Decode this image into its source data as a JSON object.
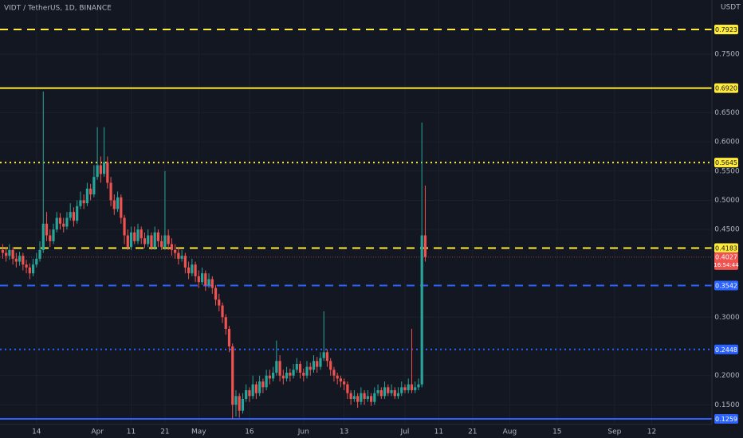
{
  "chart_data": {
    "type": "candlestick",
    "title": "VIDT / TetherUS, 1D, BINANCE",
    "y_axis_unit": "USDT",
    "up_color": "#26a69a",
    "down_color": "#ef5350",
    "grid": true,
    "xlim": [
      2.2,
      212.8
    ],
    "ylim": [
      0.1164,
      0.8427
    ],
    "xticks": [
      {
        "value": 13,
        "label": "14"
      },
      {
        "value": 31,
        "label": "Apr"
      },
      {
        "value": 41,
        "label": "11"
      },
      {
        "value": 51,
        "label": "21"
      },
      {
        "value": 61,
        "label": "May"
      },
      {
        "value": 76,
        "label": "16"
      },
      {
        "value": 92,
        "label": "Jun"
      },
      {
        "value": 104,
        "label": "13"
      },
      {
        "value": 122,
        "label": "Jul"
      },
      {
        "value": 132,
        "label": "11"
      },
      {
        "value": 142,
        "label": "21"
      },
      {
        "value": 153,
        "label": "Aug"
      },
      {
        "value": 167,
        "label": "15"
      },
      {
        "value": 184,
        "label": "Sep"
      },
      {
        "value": 195,
        "label": "12"
      }
    ],
    "yticks": [
      {
        "value": 0.15,
        "label": "0.1500"
      },
      {
        "value": 0.2,
        "label": "0.2000"
      },
      {
        "value": 0.3,
        "label": "0.3000"
      },
      {
        "value": 0.45,
        "label": "0.4500"
      },
      {
        "value": 0.5,
        "label": "0.5000"
      },
      {
        "value": 0.55,
        "label": "0.5500"
      },
      {
        "value": 0.6,
        "label": "0.6000"
      },
      {
        "value": 0.65,
        "label": "0.6500"
      },
      {
        "value": 0.75,
        "label": "0.7500"
      }
    ],
    "levels": [
      {
        "value": 0.7923,
        "label": "0.7923",
        "color": "#ffeb3b",
        "style": "dashed"
      },
      {
        "value": 0.692,
        "label": "0.6920",
        "color": "#ffeb3b",
        "style": "solid"
      },
      {
        "value": 0.5645,
        "label": "0.5645",
        "color": "#ffeb3b",
        "style": "dotted"
      },
      {
        "value": 0.4183,
        "label": "0.4183",
        "color": "#ffeb3b",
        "style": "dashed"
      },
      {
        "value": 0.3542,
        "label": "0.3542",
        "color": "#2962ff",
        "style": "dashed"
      },
      {
        "value": 0.2448,
        "label": "0.2448",
        "color": "#2962ff",
        "style": "dotted"
      },
      {
        "value": 0.1259,
        "label": "0.1259",
        "color": "#2962ff",
        "style": "solid"
      }
    ],
    "last_price": {
      "value": 0.4027,
      "label": "0.4027",
      "countdown": "16:54:44",
      "color": "#ef5350"
    },
    "x": [
      3,
      4,
      5,
      6,
      7,
      8,
      9,
      10,
      11,
      12,
      13,
      14,
      15,
      16,
      17,
      18,
      19,
      20,
      21,
      22,
      23,
      24,
      25,
      26,
      27,
      28,
      29,
      30,
      31,
      32,
      33,
      34,
      35,
      36,
      37,
      38,
      39,
      40,
      41,
      42,
      43,
      44,
      45,
      46,
      47,
      48,
      49,
      50,
      51,
      52,
      53,
      54,
      55,
      56,
      57,
      58,
      59,
      60,
      61,
      62,
      63,
      64,
      65,
      66,
      67,
      68,
      69,
      70,
      71,
      72,
      73,
      74,
      75,
      76,
      77,
      78,
      79,
      80,
      81,
      82,
      83,
      84,
      85,
      86,
      87,
      88,
      89,
      90,
      91,
      92,
      93,
      94,
      95,
      96,
      97,
      98,
      99,
      100,
      101,
      102,
      103,
      104,
      105,
      106,
      107,
      108,
      109,
      110,
      111,
      112,
      113,
      114,
      115,
      116,
      117,
      118,
      119,
      120,
      121,
      122,
      123,
      124,
      125,
      126,
      127,
      128
    ],
    "ohlc": [
      [
        0.415,
        0.425,
        0.4,
        0.41
      ],
      [
        0.41,
        0.42,
        0.395,
        0.405
      ],
      [
        0.405,
        0.425,
        0.398,
        0.415
      ],
      [
        0.415,
        0.42,
        0.39,
        0.4
      ],
      [
        0.4,
        0.41,
        0.385,
        0.395
      ],
      [
        0.395,
        0.412,
        0.388,
        0.405
      ],
      [
        0.405,
        0.41,
        0.38,
        0.39
      ],
      [
        0.39,
        0.398,
        0.375,
        0.385
      ],
      [
        0.385,
        0.392,
        0.365,
        0.375
      ],
      [
        0.375,
        0.4,
        0.37,
        0.39
      ],
      [
        0.39,
        0.41,
        0.385,
        0.4
      ],
      [
        0.4,
        0.43,
        0.395,
        0.415
      ],
      [
        0.415,
        0.686,
        0.41,
        0.46
      ],
      [
        0.46,
        0.48,
        0.43,
        0.44
      ],
      [
        0.44,
        0.45,
        0.42,
        0.43
      ],
      [
        0.43,
        0.46,
        0.425,
        0.45
      ],
      [
        0.45,
        0.48,
        0.445,
        0.47
      ],
      [
        0.47,
        0.478,
        0.45,
        0.46
      ],
      [
        0.46,
        0.47,
        0.445,
        0.455
      ],
      [
        0.455,
        0.48,
        0.45,
        0.47
      ],
      [
        0.47,
        0.495,
        0.465,
        0.48
      ],
      [
        0.48,
        0.488,
        0.455,
        0.465
      ],
      [
        0.465,
        0.5,
        0.46,
        0.49
      ],
      [
        0.49,
        0.515,
        0.485,
        0.5
      ],
      [
        0.5,
        0.51,
        0.485,
        0.495
      ],
      [
        0.495,
        0.53,
        0.49,
        0.52
      ],
      [
        0.52,
        0.528,
        0.5,
        0.51
      ],
      [
        0.51,
        0.56,
        0.505,
        0.54
      ],
      [
        0.54,
        0.625,
        0.535,
        0.56
      ],
      [
        0.56,
        0.575,
        0.53,
        0.545
      ],
      [
        0.545,
        0.625,
        0.54,
        0.565
      ],
      [
        0.565,
        0.575,
        0.52,
        0.53
      ],
      [
        0.53,
        0.54,
        0.49,
        0.5
      ],
      [
        0.5,
        0.51,
        0.475,
        0.485
      ],
      [
        0.485,
        0.515,
        0.48,
        0.505
      ],
      [
        0.505,
        0.51,
        0.46,
        0.47
      ],
      [
        0.47,
        0.475,
        0.425,
        0.44
      ],
      [
        0.44,
        0.45,
        0.415,
        0.42
      ],
      [
        0.42,
        0.455,
        0.415,
        0.445
      ],
      [
        0.445,
        0.455,
        0.425,
        0.43
      ],
      [
        0.43,
        0.46,
        0.425,
        0.45
      ],
      [
        0.45,
        0.455,
        0.425,
        0.435
      ],
      [
        0.435,
        0.445,
        0.418,
        0.425
      ],
      [
        0.425,
        0.45,
        0.42,
        0.44
      ],
      [
        0.44,
        0.445,
        0.415,
        0.42
      ],
      [
        0.42,
        0.455,
        0.415,
        0.445
      ],
      [
        0.445,
        0.45,
        0.42,
        0.43
      ],
      [
        0.43,
        0.44,
        0.415,
        0.42
      ],
      [
        0.42,
        0.55,
        0.415,
        0.44
      ],
      [
        0.44,
        0.45,
        0.415,
        0.425
      ],
      [
        0.425,
        0.435,
        0.405,
        0.415
      ],
      [
        0.415,
        0.425,
        0.4,
        0.41
      ],
      [
        0.41,
        0.42,
        0.39,
        0.4
      ],
      [
        0.4,
        0.415,
        0.395,
        0.405
      ],
      [
        0.405,
        0.41,
        0.375,
        0.385
      ],
      [
        0.385,
        0.395,
        0.365,
        0.375
      ],
      [
        0.375,
        0.4,
        0.37,
        0.39
      ],
      [
        0.39,
        0.395,
        0.36,
        0.37
      ],
      [
        0.37,
        0.38,
        0.35,
        0.36
      ],
      [
        0.36,
        0.385,
        0.355,
        0.375
      ],
      [
        0.375,
        0.38,
        0.345,
        0.355
      ],
      [
        0.355,
        0.375,
        0.35,
        0.365
      ],
      [
        0.365,
        0.37,
        0.34,
        0.35
      ],
      [
        0.35,
        0.355,
        0.32,
        0.33
      ],
      [
        0.33,
        0.34,
        0.31,
        0.32
      ],
      [
        0.32,
        0.325,
        0.29,
        0.3
      ],
      [
        0.3,
        0.305,
        0.27,
        0.28
      ],
      [
        0.28,
        0.285,
        0.24,
        0.25
      ],
      [
        0.25,
        0.255,
        0.126,
        0.15
      ],
      [
        0.15,
        0.175,
        0.13,
        0.165
      ],
      [
        0.165,
        0.17,
        0.128,
        0.14
      ],
      [
        0.14,
        0.17,
        0.135,
        0.16
      ],
      [
        0.16,
        0.185,
        0.155,
        0.175
      ],
      [
        0.175,
        0.18,
        0.155,
        0.165
      ],
      [
        0.165,
        0.2,
        0.16,
        0.185
      ],
      [
        0.185,
        0.19,
        0.16,
        0.17
      ],
      [
        0.17,
        0.2,
        0.165,
        0.19
      ],
      [
        0.19,
        0.195,
        0.17,
        0.18
      ],
      [
        0.18,
        0.21,
        0.175,
        0.2
      ],
      [
        0.2,
        0.21,
        0.185,
        0.195
      ],
      [
        0.195,
        0.215,
        0.19,
        0.205
      ],
      [
        0.205,
        0.26,
        0.2,
        0.225
      ],
      [
        0.225,
        0.235,
        0.19,
        0.2
      ],
      [
        0.2,
        0.21,
        0.185,
        0.195
      ],
      [
        0.195,
        0.215,
        0.19,
        0.205
      ],
      [
        0.205,
        0.212,
        0.19,
        0.2
      ],
      [
        0.2,
        0.22,
        0.195,
        0.21
      ],
      [
        0.21,
        0.23,
        0.205,
        0.22
      ],
      [
        0.22,
        0.225,
        0.195,
        0.205
      ],
      [
        0.205,
        0.212,
        0.19,
        0.2
      ],
      [
        0.2,
        0.225,
        0.195,
        0.215
      ],
      [
        0.215,
        0.222,
        0.2,
        0.21
      ],
      [
        0.21,
        0.235,
        0.205,
        0.225
      ],
      [
        0.225,
        0.232,
        0.205,
        0.215
      ],
      [
        0.215,
        0.24,
        0.21,
        0.23
      ],
      [
        0.23,
        0.31,
        0.225,
        0.24
      ],
      [
        0.24,
        0.245,
        0.215,
        0.225
      ],
      [
        0.225,
        0.23,
        0.2,
        0.21
      ],
      [
        0.21,
        0.215,
        0.19,
        0.2
      ],
      [
        0.2,
        0.205,
        0.185,
        0.195
      ],
      [
        0.195,
        0.2,
        0.18,
        0.19
      ],
      [
        0.19,
        0.195,
        0.175,
        0.185
      ],
      [
        0.185,
        0.19,
        0.16,
        0.17
      ],
      [
        0.17,
        0.175,
        0.15,
        0.16
      ],
      [
        0.16,
        0.175,
        0.155,
        0.165
      ],
      [
        0.165,
        0.17,
        0.145,
        0.155
      ],
      [
        0.155,
        0.18,
        0.15,
        0.17
      ],
      [
        0.17,
        0.175,
        0.15,
        0.16
      ],
      [
        0.16,
        0.175,
        0.155,
        0.165
      ],
      [
        0.165,
        0.17,
        0.148,
        0.155
      ],
      [
        0.155,
        0.18,
        0.15,
        0.17
      ],
      [
        0.17,
        0.185,
        0.165,
        0.175
      ],
      [
        0.175,
        0.18,
        0.16,
        0.165
      ],
      [
        0.165,
        0.19,
        0.16,
        0.18
      ],
      [
        0.18,
        0.185,
        0.165,
        0.17
      ],
      [
        0.17,
        0.185,
        0.165,
        0.175
      ],
      [
        0.175,
        0.18,
        0.16,
        0.165
      ],
      [
        0.165,
        0.18,
        0.16,
        0.17
      ],
      [
        0.17,
        0.19,
        0.165,
        0.18
      ],
      [
        0.18,
        0.185,
        0.17,
        0.175
      ],
      [
        0.175,
        0.195,
        0.17,
        0.185
      ],
      [
        0.185,
        0.28,
        0.17,
        0.175
      ],
      [
        0.175,
        0.19,
        0.17,
        0.18
      ],
      [
        0.18,
        0.195,
        0.175,
        0.185
      ],
      [
        0.185,
        0.633,
        0.18,
        0.44
      ],
      [
        0.44,
        0.525,
        0.395,
        0.403
      ]
    ]
  }
}
